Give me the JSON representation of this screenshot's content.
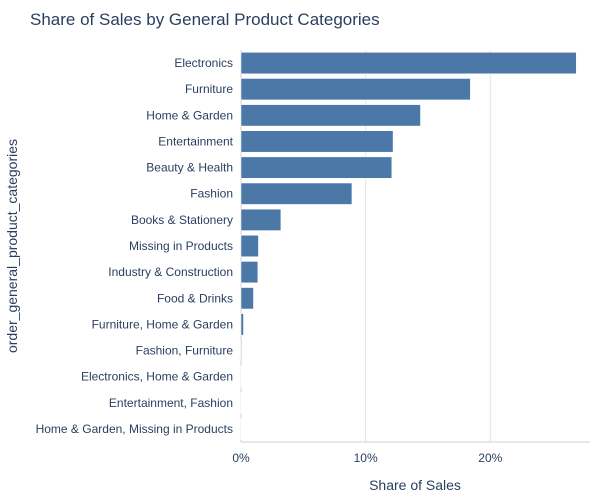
{
  "chart_data": {
    "type": "bar",
    "orientation": "horizontal",
    "title": "Share of Sales by General Product Categories",
    "xlabel": "Share of Sales",
    "ylabel": "order_general_product_categories",
    "categories": [
      "Electronics",
      "Furniture",
      "Home & Garden",
      "Entertainment",
      "Beauty & Health",
      "Fashion",
      "Books & Stationery",
      "Missing in Products",
      "Industry & Construction",
      "Food & Drinks",
      "Furniture, Home & Garden",
      "Fashion, Furniture",
      "Electronics, Home & Garden",
      "Entertainment, Fashion",
      "Home & Garden, Missing in Products"
    ],
    "values": [
      26.9,
      18.4,
      14.4,
      12.2,
      12.1,
      8.9,
      3.2,
      1.4,
      1.35,
      1.0,
      0.2,
      0.05,
      0.04,
      0.03,
      0.02
    ],
    "xlim": [
      0,
      28
    ],
    "xticks": [
      0,
      10,
      20
    ],
    "xtick_labels": [
      "0%",
      "10%",
      "20%"
    ],
    "grid": true,
    "bar_color": "#4c78a8",
    "text_color": "#2a3f5f"
  }
}
